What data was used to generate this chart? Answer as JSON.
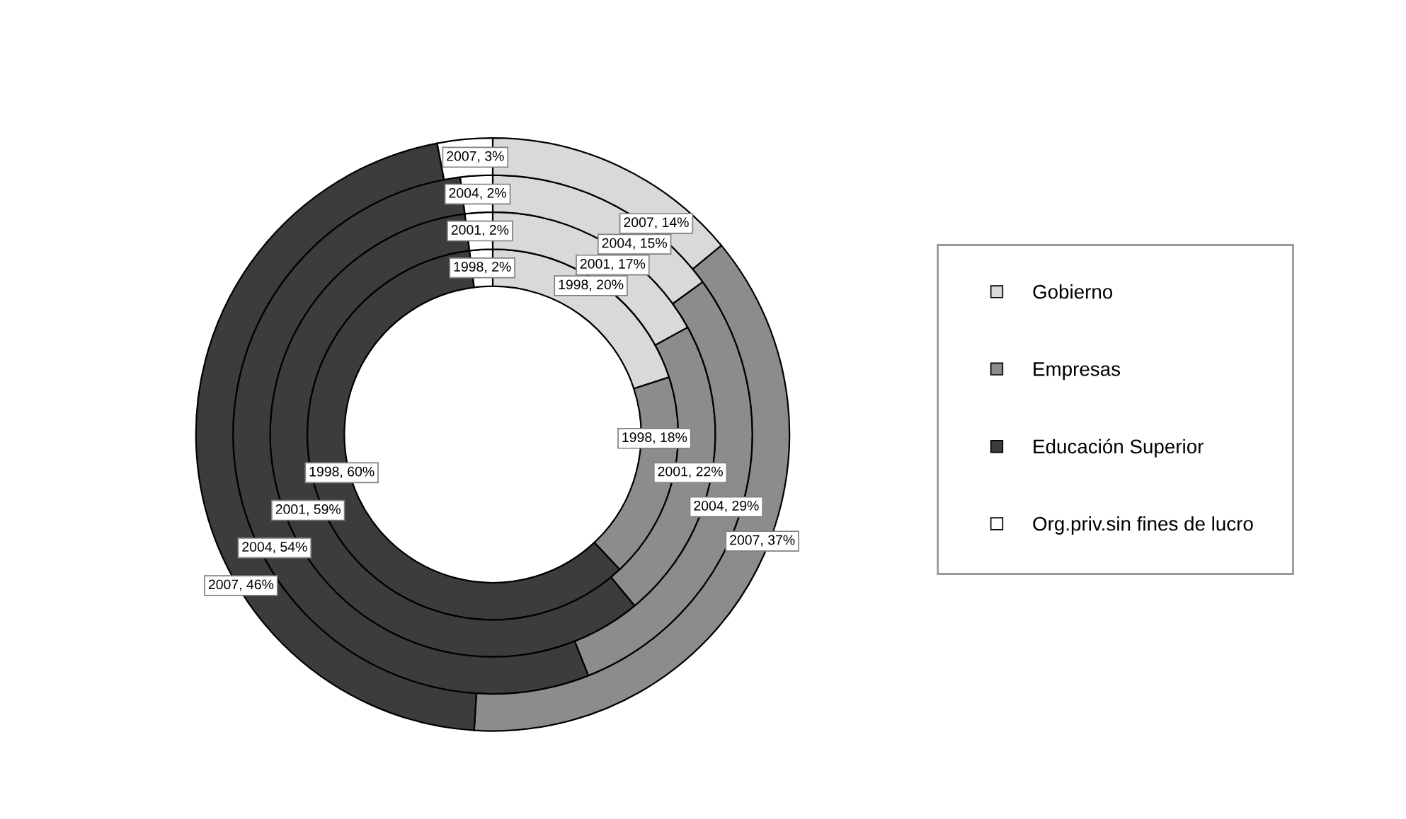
{
  "chart_data": {
    "type": "donut",
    "categories": [
      "Gobierno",
      "Empresas",
      "Educación Superior",
      "Org.priv.sin fines de lucro"
    ],
    "colors": [
      "#d9d9d9",
      "#8c8c8c",
      "#3c3c3c",
      "#ffffff"
    ],
    "series": [
      {
        "values": [
          20,
          18,
          60,
          2
        ],
        "value_labels": [
          "1998, 20%",
          "1998, 18%",
          "1998, 60%",
          "1998, 2%"
        ]
      },
      {
        "values": [
          17,
          22,
          59,
          2
        ],
        "value_labels": [
          "2001, 17%",
          "2001, 22%",
          "2001, 59%",
          "2001, 2%"
        ]
      },
      {
        "values": [
          15,
          29,
          54,
          2
        ],
        "value_labels": [
          "2004, 15%",
          "2004, 29%",
          "2004, 54%",
          "2004, 2%"
        ]
      },
      {
        "values": [
          14,
          37,
          46,
          3
        ],
        "value_labels": [
          "2007, 14%",
          "2007, 37%",
          "2007, 46%",
          "2007, 3%"
        ]
      }
    ],
    "legend": "right"
  }
}
